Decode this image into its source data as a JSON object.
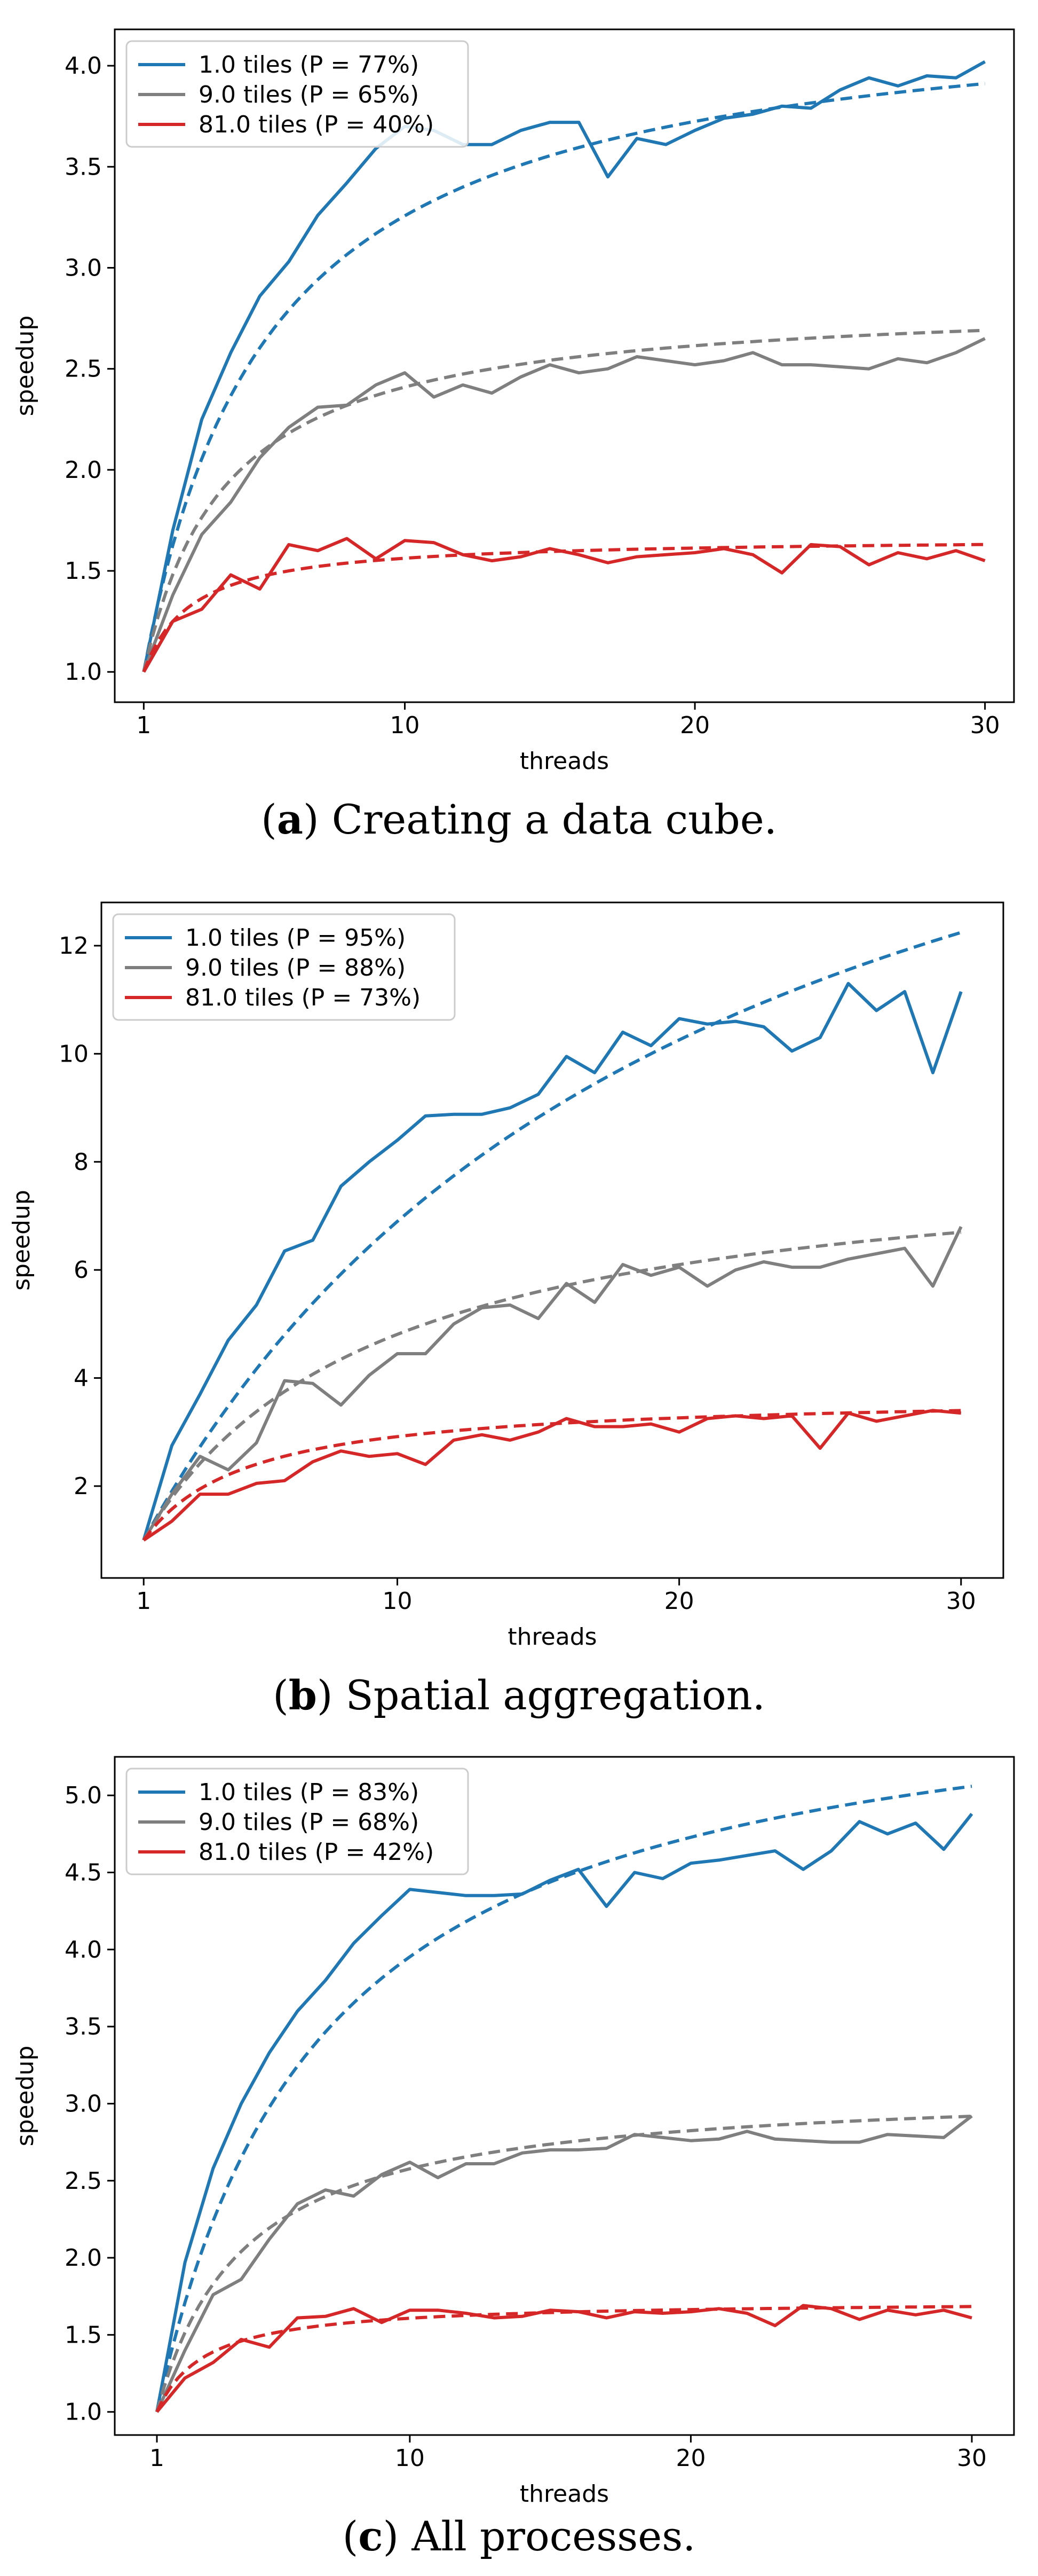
{
  "chart_data": [
    {
      "type": "line",
      "panel": "a",
      "caption_letter": "a",
      "caption_text": " Creating a data cube.",
      "xlabel": "threads",
      "ylabel": "speedup",
      "xlim": [
        0,
        31
      ],
      "ylim": [
        0.85,
        4.18
      ],
      "xticks": [
        1,
        10,
        20,
        30
      ],
      "yticks": [
        1.0,
        1.5,
        2.0,
        2.5,
        3.0,
        3.5,
        4.0
      ],
      "ytick_decimals": 1,
      "legend_position": "upper-left",
      "series": [
        {
          "name": "1.0 tiles (P = 77%)",
          "color": "#1f77b4",
          "P": 0.77,
          "x": [
            1,
            2,
            3,
            4,
            5,
            6,
            7,
            8,
            9,
            10,
            11,
            12,
            13,
            14,
            15,
            16,
            17,
            18,
            19,
            20,
            21,
            22,
            23,
            24,
            25,
            26,
            27,
            28,
            29,
            30
          ],
          "values": [
            1.0,
            1.7,
            2.25,
            2.58,
            2.86,
            3.03,
            3.26,
            3.42,
            3.59,
            3.7,
            3.68,
            3.61,
            3.61,
            3.68,
            3.72,
            3.72,
            3.45,
            3.64,
            3.61,
            3.68,
            3.74,
            3.76,
            3.8,
            3.79,
            3.88,
            3.94,
            3.9,
            3.95,
            3.94,
            4.02
          ]
        },
        {
          "name": "9.0 tiles (P = 65%)",
          "color": "#7f7f7f",
          "P": 0.65,
          "x": [
            1,
            2,
            3,
            4,
            5,
            6,
            7,
            8,
            9,
            10,
            11,
            12,
            13,
            14,
            15,
            16,
            17,
            18,
            19,
            20,
            21,
            22,
            23,
            24,
            25,
            26,
            27,
            28,
            29,
            30
          ],
          "values": [
            1.0,
            1.38,
            1.68,
            1.84,
            2.06,
            2.21,
            2.31,
            2.32,
            2.42,
            2.48,
            2.36,
            2.42,
            2.38,
            2.46,
            2.52,
            2.48,
            2.5,
            2.56,
            2.54,
            2.52,
            2.54,
            2.58,
            2.52,
            2.52,
            2.51,
            2.5,
            2.55,
            2.53,
            2.58,
            2.65
          ]
        },
        {
          "name": "81.0 tiles (P = 40%)",
          "color": "#d62728",
          "P": 0.4,
          "x": [
            1,
            2,
            3,
            4,
            5,
            6,
            7,
            8,
            9,
            10,
            11,
            12,
            13,
            14,
            15,
            16,
            17,
            18,
            19,
            20,
            21,
            22,
            23,
            24,
            25,
            26,
            27,
            28,
            29,
            30
          ],
          "values": [
            1.0,
            1.25,
            1.31,
            1.48,
            1.41,
            1.63,
            1.6,
            1.66,
            1.56,
            1.65,
            1.64,
            1.58,
            1.55,
            1.57,
            1.61,
            1.58,
            1.54,
            1.57,
            1.58,
            1.59,
            1.61,
            1.58,
            1.49,
            1.63,
            1.62,
            1.53,
            1.59,
            1.56,
            1.6,
            1.55
          ]
        }
      ]
    },
    {
      "type": "line",
      "panel": "b",
      "caption_letter": "b",
      "caption_text": " Spatial aggregation.",
      "xlabel": "threads",
      "ylabel": "speedup",
      "xlim": [
        -0.5,
        31.5
      ],
      "ylim": [
        0.3,
        12.8
      ],
      "xticks": [
        1,
        10,
        20,
        30
      ],
      "yticks": [
        2,
        4,
        6,
        8,
        10,
        12
      ],
      "ytick_decimals": 0,
      "legend_position": "upper-left",
      "series": [
        {
          "name": "1.0 tiles (P = 95%)",
          "color": "#1f77b4",
          "P": 0.95,
          "x": [
            1,
            2,
            3,
            4,
            5,
            6,
            7,
            8,
            9,
            10,
            11,
            12,
            13,
            14,
            15,
            16,
            17,
            18,
            19,
            20,
            21,
            22,
            23,
            24,
            25,
            26,
            27,
            28,
            29,
            30
          ],
          "values": [
            1.0,
            2.75,
            3.7,
            4.7,
            5.35,
            6.35,
            6.55,
            7.55,
            8.0,
            8.4,
            8.85,
            8.88,
            8.88,
            9.0,
            9.25,
            9.95,
            9.65,
            10.4,
            10.15,
            10.65,
            10.55,
            10.6,
            10.5,
            10.05,
            10.3,
            11.3,
            10.8,
            11.15,
            9.65,
            11.15
          ]
        },
        {
          "name": "9.0 tiles (P = 88%)",
          "color": "#7f7f7f",
          "P": 0.88,
          "x": [
            1,
            2,
            3,
            4,
            5,
            6,
            7,
            8,
            9,
            10,
            11,
            12,
            13,
            14,
            15,
            16,
            17,
            18,
            19,
            20,
            21,
            22,
            23,
            24,
            25,
            26,
            27,
            28,
            29,
            30
          ],
          "values": [
            1.0,
            1.85,
            2.55,
            2.3,
            2.8,
            3.95,
            3.9,
            3.5,
            4.05,
            4.45,
            4.45,
            5.0,
            5.3,
            5.35,
            5.1,
            5.75,
            5.4,
            6.1,
            5.9,
            6.05,
            5.7,
            6.0,
            6.15,
            6.05,
            6.05,
            6.2,
            6.3,
            6.4,
            5.7,
            6.8
          ]
        },
        {
          "name": "81.0 tiles (P = 73%)",
          "color": "#d62728",
          "P": 0.73,
          "x": [
            1,
            2,
            3,
            4,
            5,
            6,
            7,
            8,
            9,
            10,
            11,
            12,
            13,
            14,
            15,
            16,
            17,
            18,
            19,
            20,
            21,
            22,
            23,
            24,
            25,
            26,
            27,
            28,
            29,
            30
          ],
          "values": [
            1.0,
            1.35,
            1.85,
            1.85,
            2.05,
            2.1,
            2.45,
            2.65,
            2.55,
            2.6,
            2.4,
            2.85,
            2.95,
            2.85,
            3.0,
            3.25,
            3.1,
            3.1,
            3.15,
            3.0,
            3.25,
            3.3,
            3.25,
            3.3,
            2.7,
            3.35,
            3.2,
            3.3,
            3.4,
            3.35
          ]
        }
      ]
    },
    {
      "type": "line",
      "panel": "c",
      "caption_letter": "c",
      "caption_text": " All processes.",
      "xlabel": "threads",
      "ylabel": "speedup",
      "xlim": [
        -0.5,
        31.5
      ],
      "ylim": [
        0.85,
        5.25
      ],
      "xticks": [
        1,
        10,
        20,
        30
      ],
      "yticks": [
        1.0,
        1.5,
        2.0,
        2.5,
        3.0,
        3.5,
        4.0,
        4.5,
        5.0
      ],
      "ytick_decimals": 1,
      "legend_position": "upper-left",
      "series": [
        {
          "name": "1.0 tiles (P = 83%)",
          "color": "#1f77b4",
          "P": 0.83,
          "x": [
            1,
            2,
            3,
            4,
            5,
            6,
            7,
            8,
            9,
            10,
            11,
            12,
            13,
            14,
            15,
            16,
            17,
            18,
            19,
            20,
            21,
            22,
            23,
            24,
            25,
            26,
            27,
            28,
            29,
            30
          ],
          "values": [
            1.0,
            1.97,
            2.58,
            3.0,
            3.33,
            3.6,
            3.8,
            4.04,
            4.22,
            4.39,
            4.37,
            4.35,
            4.35,
            4.36,
            4.45,
            4.52,
            4.28,
            4.5,
            4.46,
            4.56,
            4.58,
            4.61,
            4.64,
            4.52,
            4.64,
            4.83,
            4.75,
            4.82,
            4.65,
            4.88
          ]
        },
        {
          "name": "9.0 tiles (P = 68%)",
          "color": "#7f7f7f",
          "P": 0.68,
          "x": [
            1,
            2,
            3,
            4,
            5,
            6,
            7,
            8,
            9,
            10,
            11,
            12,
            13,
            14,
            15,
            16,
            17,
            18,
            19,
            20,
            21,
            22,
            23,
            24,
            25,
            26,
            27,
            28,
            29,
            30
          ],
          "values": [
            1.0,
            1.4,
            1.76,
            1.86,
            2.12,
            2.35,
            2.44,
            2.4,
            2.54,
            2.62,
            2.52,
            2.61,
            2.61,
            2.68,
            2.7,
            2.7,
            2.71,
            2.8,
            2.78,
            2.76,
            2.77,
            2.82,
            2.77,
            2.76,
            2.75,
            2.75,
            2.8,
            2.79,
            2.78,
            2.92
          ]
        },
        {
          "name": "81.0 tiles (P = 42%)",
          "color": "#d62728",
          "P": 0.42,
          "x": [
            1,
            2,
            3,
            4,
            5,
            6,
            7,
            8,
            9,
            10,
            11,
            12,
            13,
            14,
            15,
            16,
            17,
            18,
            19,
            20,
            21,
            22,
            23,
            24,
            25,
            26,
            27,
            28,
            29,
            30
          ],
          "values": [
            1.0,
            1.22,
            1.32,
            1.47,
            1.42,
            1.61,
            1.62,
            1.67,
            1.58,
            1.66,
            1.66,
            1.64,
            1.61,
            1.62,
            1.66,
            1.65,
            1.61,
            1.65,
            1.64,
            1.65,
            1.67,
            1.64,
            1.56,
            1.69,
            1.67,
            1.6,
            1.66,
            1.63,
            1.66,
            1.61
          ]
        }
      ]
    }
  ]
}
